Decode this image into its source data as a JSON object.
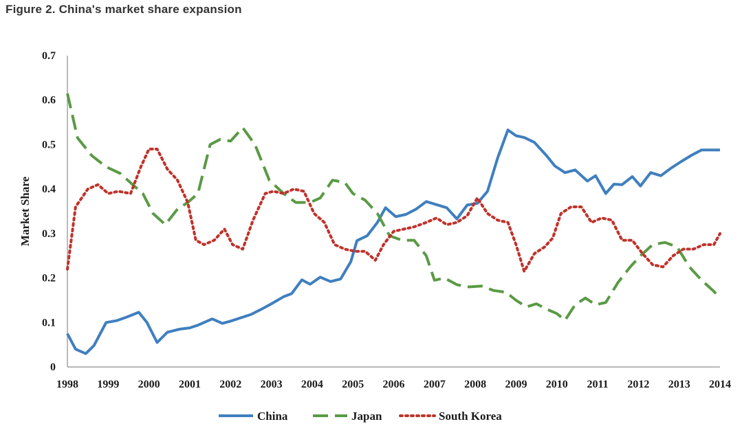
{
  "figure_title": "Figure 2. China's market share expansion",
  "chart_data": {
    "type": "line",
    "title": "",
    "xlabel": "",
    "ylabel": "Market Share",
    "xlim": [
      1998,
      2014
    ],
    "ylim": [
      0,
      0.7
    ],
    "x_ticks": [
      "1998",
      "1999",
      "2000",
      "2001",
      "2002",
      "2003",
      "2004",
      "2005",
      "2006",
      "2007",
      "2008",
      "2009",
      "2010",
      "2011",
      "2012",
      "2013",
      "2014"
    ],
    "y_ticks": [
      "0",
      "0.1",
      "0.2",
      "0.3",
      "0.4",
      "0.5",
      "0.6",
      "0.7"
    ],
    "grid": false,
    "legend_position": "bottom",
    "series": [
      {
        "name": "China",
        "color": "#3f7fbf",
        "dash": "solid",
        "x": [
          1998.0,
          1998.2,
          1998.45,
          1998.65,
          1998.95,
          1999.2,
          1999.45,
          1999.75,
          1999.95,
          2000.2,
          2000.45,
          2000.75,
          2001.0,
          2001.2,
          2001.55,
          2001.8,
          2002.0,
          2002.5,
          2002.8,
          2003.0,
          2003.3,
          2003.5,
          2003.75,
          2003.95,
          2004.2,
          2004.45,
          2004.7,
          2004.95,
          2005.1,
          2005.35,
          2005.6,
          2005.8,
          2006.05,
          2006.3,
          2006.55,
          2006.8,
          2007.05,
          2007.3,
          2007.55,
          2007.8,
          2008.05,
          2008.3,
          2008.55,
          2008.8,
          2009.0,
          2009.2,
          2009.45,
          2009.75,
          2009.95,
          2010.2,
          2010.45,
          2010.75,
          2010.95,
          2011.2,
          2011.4,
          2011.6,
          2011.85,
          2012.05,
          2012.3,
          2012.55,
          2012.8,
          2013.05,
          2013.3,
          2013.55,
          2013.85,
          2014.0
        ],
        "y": [
          0.075,
          0.04,
          0.03,
          0.048,
          0.1,
          0.104,
          0.112,
          0.123,
          0.1,
          0.055,
          0.078,
          0.085,
          0.088,
          0.094,
          0.108,
          0.098,
          0.103,
          0.118,
          0.132,
          0.142,
          0.158,
          0.165,
          0.196,
          0.186,
          0.202,
          0.192,
          0.198,
          0.237,
          0.284,
          0.295,
          0.325,
          0.358,
          0.338,
          0.343,
          0.355,
          0.372,
          0.365,
          0.358,
          0.333,
          0.364,
          0.368,
          0.395,
          0.47,
          0.533,
          0.52,
          0.516,
          0.505,
          0.475,
          0.452,
          0.437,
          0.443,
          0.418,
          0.43,
          0.39,
          0.411,
          0.41,
          0.428,
          0.407,
          0.437,
          0.43,
          0.447,
          0.462,
          0.476,
          0.488,
          0.488,
          0.488
        ]
      },
      {
        "name": "Japan",
        "color": "#5a9a45",
        "dash": "dashed",
        "x": [
          1998.0,
          1998.25,
          1998.6,
          1998.95,
          1999.3,
          1999.6,
          1999.85,
          2000.1,
          2000.4,
          2000.7,
          2000.95,
          2001.2,
          2001.5,
          2001.75,
          2002.0,
          2002.3,
          2002.6,
          2002.95,
          2003.3,
          2003.6,
          2003.95,
          2004.2,
          2004.5,
          2004.8,
          2005.0,
          2005.3,
          2005.6,
          2005.9,
          2006.2,
          2006.5,
          2006.8,
          2007.0,
          2007.25,
          2007.55,
          2007.85,
          2008.15,
          2008.45,
          2008.75,
          2009.0,
          2009.25,
          2009.5,
          2009.75,
          2010.0,
          2010.2,
          2010.45,
          2010.7,
          2010.95,
          2011.2,
          2011.5,
          2011.8,
          2012.05,
          2012.35,
          2012.65,
          2012.95,
          2013.25,
          2013.55,
          2013.85,
          2014.0
        ],
        "y": [
          0.615,
          0.515,
          0.475,
          0.45,
          0.435,
          0.41,
          0.39,
          0.345,
          0.32,
          0.355,
          0.37,
          0.39,
          0.5,
          0.512,
          0.508,
          0.538,
          0.5,
          0.42,
          0.39,
          0.37,
          0.37,
          0.38,
          0.42,
          0.415,
          0.39,
          0.375,
          0.345,
          0.295,
          0.285,
          0.285,
          0.25,
          0.195,
          0.2,
          0.185,
          0.18,
          0.182,
          0.172,
          0.168,
          0.15,
          0.135,
          0.142,
          0.13,
          0.12,
          0.105,
          0.14,
          0.155,
          0.14,
          0.145,
          0.19,
          0.225,
          0.25,
          0.275,
          0.28,
          0.27,
          0.225,
          0.195,
          0.17,
          0.155
        ]
      },
      {
        "name": "South Korea",
        "color": "#c0322b",
        "dash": "dotted",
        "x": [
          1998.0,
          1998.2,
          1998.5,
          1998.75,
          1999.0,
          1999.25,
          1999.55,
          1999.8,
          2000.0,
          2000.2,
          2000.45,
          2000.7,
          2000.95,
          2001.15,
          2001.35,
          2001.6,
          2001.85,
          2002.05,
          2002.3,
          2002.55,
          2002.85,
          2003.05,
          2003.3,
          2003.55,
          2003.8,
          2004.05,
          2004.3,
          2004.55,
          2004.8,
          2005.05,
          2005.3,
          2005.55,
          2005.75,
          2006.0,
          2006.25,
          2006.5,
          2006.8,
          2007.05,
          2007.3,
          2007.55,
          2007.8,
          2008.05,
          2008.3,
          2008.55,
          2008.8,
          2009.0,
          2009.2,
          2009.45,
          2009.7,
          2009.9,
          2010.1,
          2010.35,
          2010.6,
          2010.85,
          2011.1,
          2011.35,
          2011.6,
          2011.85,
          2012.1,
          2012.35,
          2012.6,
          2012.85,
          2013.1,
          2013.35,
          2013.6,
          2013.85,
          2014.0
        ],
        "y": [
          0.22,
          0.36,
          0.4,
          0.41,
          0.39,
          0.395,
          0.39,
          0.45,
          0.49,
          0.49,
          0.445,
          0.42,
          0.37,
          0.285,
          0.275,
          0.285,
          0.31,
          0.275,
          0.265,
          0.33,
          0.39,
          0.395,
          0.39,
          0.4,
          0.395,
          0.345,
          0.325,
          0.275,
          0.265,
          0.26,
          0.26,
          0.24,
          0.275,
          0.305,
          0.31,
          0.315,
          0.325,
          0.335,
          0.32,
          0.325,
          0.34,
          0.38,
          0.345,
          0.33,
          0.325,
          0.275,
          0.215,
          0.255,
          0.27,
          0.29,
          0.345,
          0.36,
          0.36,
          0.325,
          0.335,
          0.33,
          0.285,
          0.285,
          0.255,
          0.23,
          0.225,
          0.25,
          0.265,
          0.265,
          0.275,
          0.275,
          0.3
        ]
      }
    ]
  }
}
